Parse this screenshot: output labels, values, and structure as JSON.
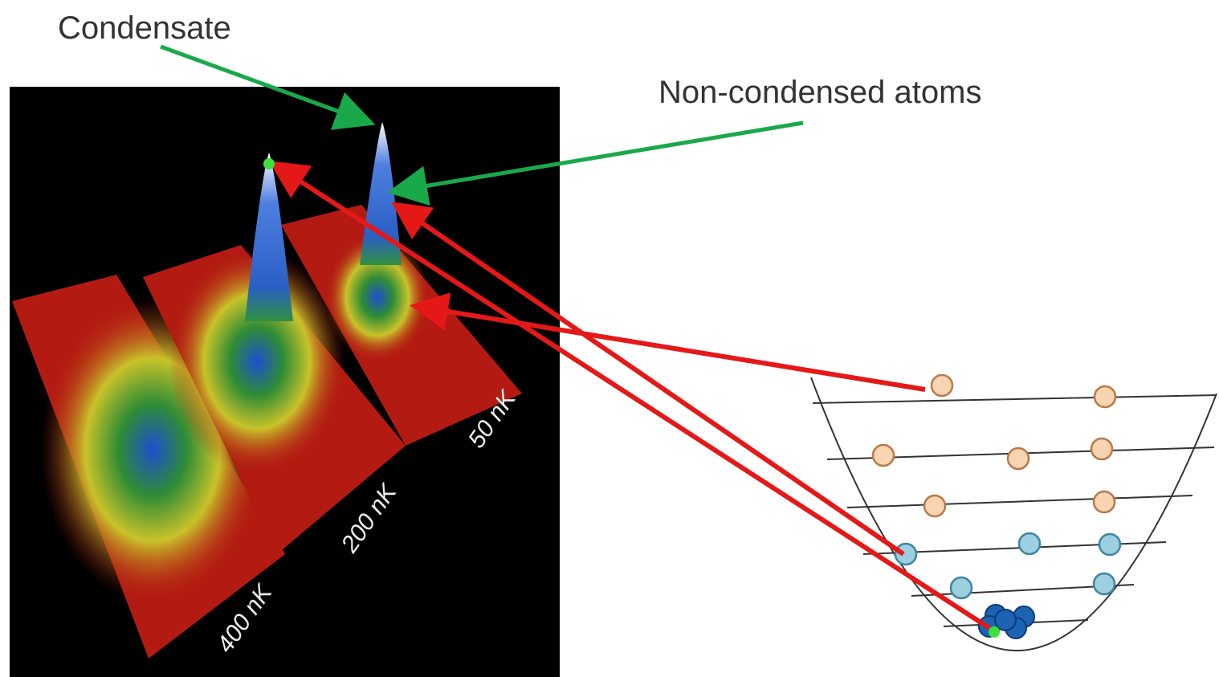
{
  "labels": {
    "condensate": "Condensate",
    "non_condensed": "Non-condensed atoms"
  },
  "image": {
    "temperatures": [
      "400 nK",
      "200 nK",
      "50 nK"
    ]
  }
}
